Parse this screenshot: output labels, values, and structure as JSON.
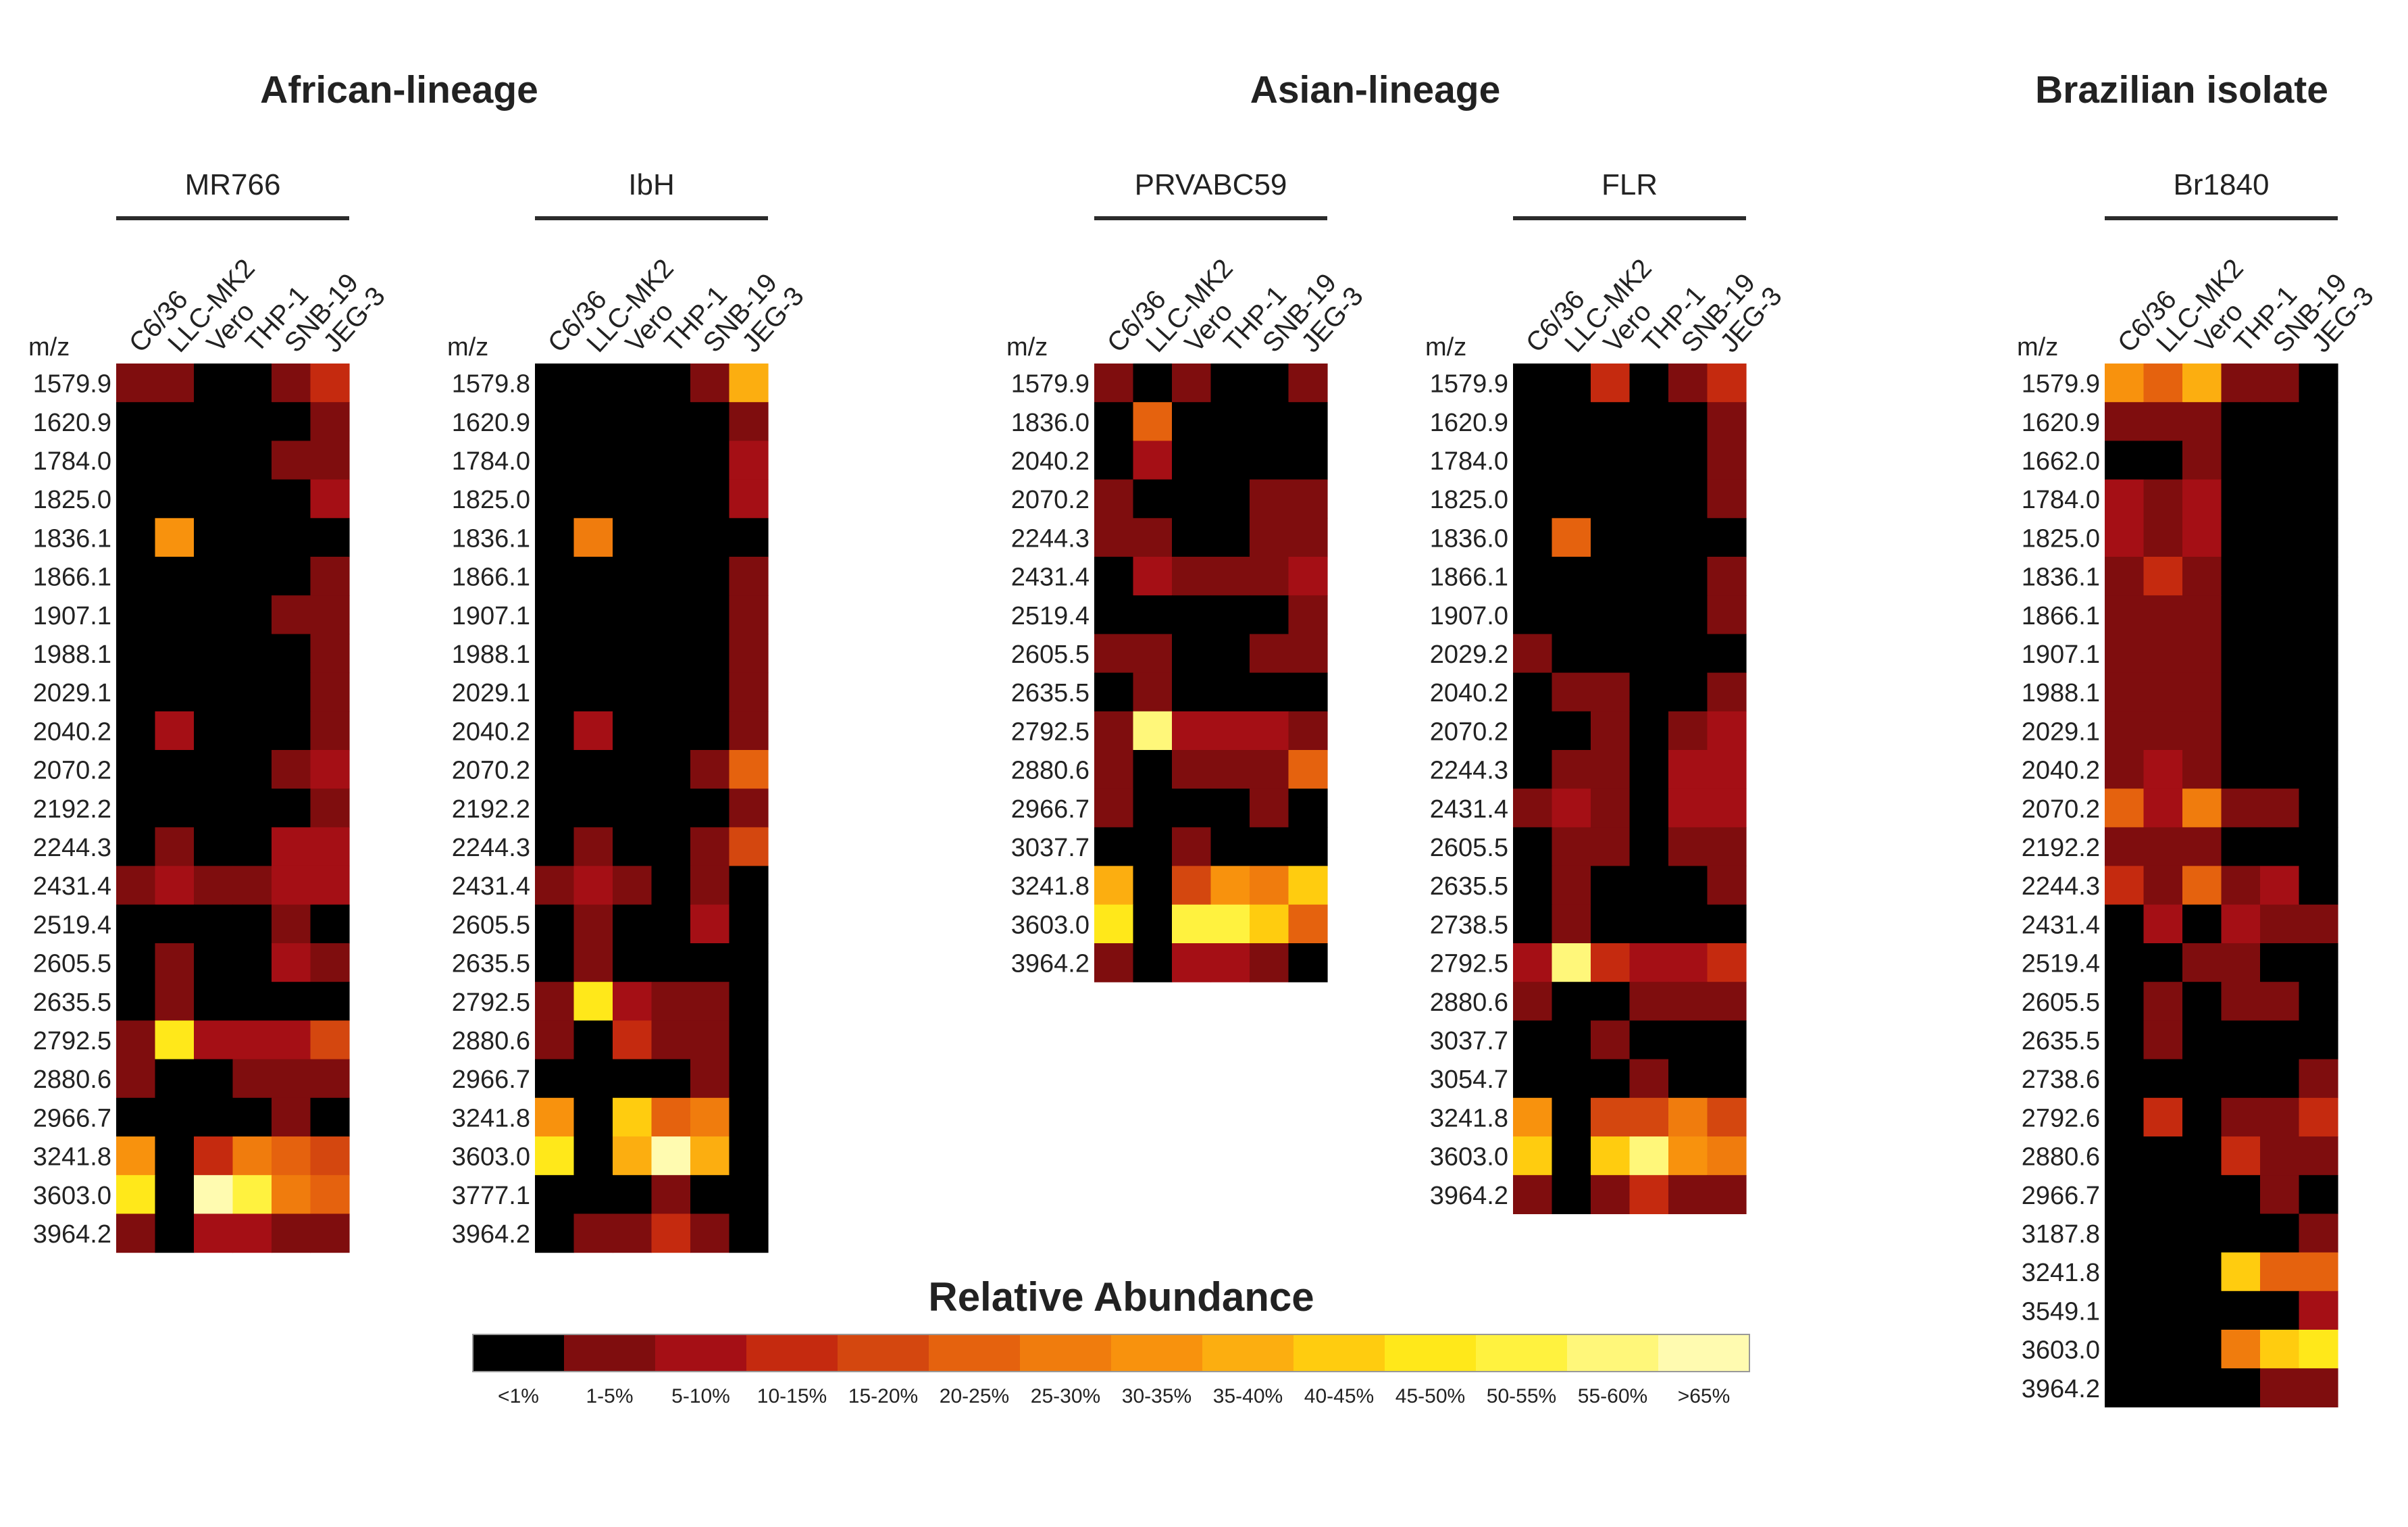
{
  "chart_data": {
    "type": "heatmap",
    "legend": {
      "title": "Relative Abundance",
      "bins": [
        {
          "label": "<1%",
          "color": "#000000"
        },
        {
          "label": "1-5%",
          "color": "#7f0d0e"
        },
        {
          "label": "5-10%",
          "color": "#a50f15"
        },
        {
          "label": "10-15%",
          "color": "#c52a0f"
        },
        {
          "label": "15-20%",
          "color": "#d4470f"
        },
        {
          "label": "20-25%",
          "color": "#e5620e"
        },
        {
          "label": "25-30%",
          "color": "#f07c0d"
        },
        {
          "label": "30-35%",
          "color": "#f8920d"
        },
        {
          "label": "35-40%",
          "color": "#fcae10"
        },
        {
          "label": "40-45%",
          "color": "#ffcc0f"
        },
        {
          "label": "45-50%",
          "color": "#ffe81a"
        },
        {
          "label": "50-55%",
          "color": "#fff23f"
        },
        {
          "label": "55-60%",
          "color": "#fff77a"
        },
        {
          "label": ">65%",
          "color": "#fffbb0"
        }
      ]
    },
    "groups": [
      {
        "title": "African-lineage",
        "panels": [
          0,
          1
        ]
      },
      {
        "title": "Asian-lineage",
        "panels": [
          2,
          3
        ]
      },
      {
        "title": "Brazilian isolate",
        "panels": [
          4
        ]
      }
    ],
    "row_header": "m/z",
    "panels": [
      {
        "virus": "MR766",
        "columns": [
          "C6/36",
          "LLC-MK2",
          "Vero",
          "THP-1",
          "SNB-19",
          "JEG-3"
        ],
        "rows": [
          "1579.9",
          "1620.9",
          "1784.0",
          "1825.0",
          "1836.1",
          "1866.1",
          "1907.1",
          "1988.1",
          "2029.1",
          "2040.2",
          "2070.2",
          "2192.2",
          "2244.3",
          "2431.4",
          "2519.4",
          "2605.5",
          "2635.5",
          "2792.5",
          "2880.6",
          "2966.7",
          "3241.8",
          "3603.0",
          "3964.2"
        ],
        "values": [
          [
            1,
            1,
            0,
            0,
            1,
            3
          ],
          [
            0,
            0,
            0,
            0,
            0,
            1
          ],
          [
            0,
            0,
            0,
            0,
            1,
            1
          ],
          [
            0,
            0,
            0,
            0,
            0,
            2
          ],
          [
            0,
            7,
            0,
            0,
            0,
            0
          ],
          [
            0,
            0,
            0,
            0,
            0,
            1
          ],
          [
            0,
            0,
            0,
            0,
            1,
            1
          ],
          [
            0,
            0,
            0,
            0,
            0,
            1
          ],
          [
            0,
            0,
            0,
            0,
            0,
            1
          ],
          [
            0,
            2,
            0,
            0,
            0,
            1
          ],
          [
            0,
            0,
            0,
            0,
            1,
            2
          ],
          [
            0,
            0,
            0,
            0,
            0,
            1
          ],
          [
            0,
            1,
            0,
            0,
            2,
            2
          ],
          [
            1,
            2,
            1,
            1,
            2,
            2
          ],
          [
            0,
            0,
            0,
            0,
            1,
            0
          ],
          [
            0,
            1,
            0,
            0,
            2,
            1
          ],
          [
            0,
            1,
            0,
            0,
            0,
            0
          ],
          [
            1,
            10,
            2,
            2,
            2,
            4
          ],
          [
            1,
            0,
            0,
            1,
            1,
            1
          ],
          [
            0,
            0,
            0,
            0,
            1,
            0
          ],
          [
            7,
            0,
            3,
            6,
            5,
            4
          ],
          [
            10,
            0,
            13,
            11,
            6,
            5
          ],
          [
            1,
            0,
            2,
            2,
            1,
            1
          ]
        ]
      },
      {
        "virus": "IbH",
        "columns": [
          "C6/36",
          "LLC-MK2",
          "Vero",
          "THP-1",
          "SNB-19",
          "JEG-3"
        ],
        "rows": [
          "1579.8",
          "1620.9",
          "1784.0",
          "1825.0",
          "1836.1",
          "1866.1",
          "1907.1",
          "1988.1",
          "2029.1",
          "2040.2",
          "2070.2",
          "2192.2",
          "2244.3",
          "2431.4",
          "2605.5",
          "2635.5",
          "2792.5",
          "2880.6",
          "2966.7",
          "3241.8",
          "3603.0",
          "3777.1",
          "3964.2"
        ],
        "values": [
          [
            0,
            0,
            0,
            0,
            1,
            8
          ],
          [
            0,
            0,
            0,
            0,
            0,
            1
          ],
          [
            0,
            0,
            0,
            0,
            0,
            2
          ],
          [
            0,
            0,
            0,
            0,
            0,
            2
          ],
          [
            0,
            6,
            0,
            0,
            0,
            0
          ],
          [
            0,
            0,
            0,
            0,
            0,
            1
          ],
          [
            0,
            0,
            0,
            0,
            0,
            1
          ],
          [
            0,
            0,
            0,
            0,
            0,
            1
          ],
          [
            0,
            0,
            0,
            0,
            0,
            1
          ],
          [
            0,
            2,
            0,
            0,
            0,
            1
          ],
          [
            0,
            0,
            0,
            0,
            1,
            5
          ],
          [
            0,
            0,
            0,
            0,
            0,
            1
          ],
          [
            0,
            1,
            0,
            0,
            1,
            4
          ],
          [
            1,
            2,
            1,
            0,
            1,
            0
          ],
          [
            0,
            1,
            0,
            0,
            2,
            0
          ],
          [
            0,
            1,
            0,
            0,
            0,
            0
          ],
          [
            1,
            10,
            2,
            1,
            1,
            0
          ],
          [
            1,
            0,
            3,
            1,
            1,
            0
          ],
          [
            0,
            0,
            0,
            0,
            1,
            0
          ],
          [
            7,
            0,
            9,
            5,
            6,
            0
          ],
          [
            10,
            0,
            8,
            13,
            8,
            0
          ],
          [
            0,
            0,
            0,
            1,
            0,
            0
          ],
          [
            0,
            1,
            1,
            3,
            1,
            0
          ]
        ]
      },
      {
        "virus": "PRVABC59",
        "columns": [
          "C6/36",
          "LLC-MK2",
          "Vero",
          "THP-1",
          "SNB-19",
          "JEG-3"
        ],
        "rows": [
          "1579.9",
          "1836.0",
          "2040.2",
          "2070.2",
          "2244.3",
          "2431.4",
          "2519.4",
          "2605.5",
          "2635.5",
          "2792.5",
          "2880.6",
          "2966.7",
          "3037.7",
          "3241.8",
          "3603.0",
          "3964.2"
        ],
        "values": [
          [
            1,
            0,
            1,
            0,
            0,
            1
          ],
          [
            0,
            5,
            0,
            0,
            0,
            0
          ],
          [
            0,
            2,
            0,
            0,
            0,
            0
          ],
          [
            1,
            0,
            0,
            0,
            1,
            1
          ],
          [
            1,
            1,
            0,
            0,
            1,
            1
          ],
          [
            0,
            2,
            1,
            1,
            1,
            2
          ],
          [
            0,
            0,
            0,
            0,
            0,
            1
          ],
          [
            1,
            1,
            0,
            0,
            1,
            1
          ],
          [
            0,
            1,
            0,
            0,
            0,
            0
          ],
          [
            1,
            12,
            2,
            2,
            2,
            1
          ],
          [
            1,
            0,
            1,
            1,
            1,
            5
          ],
          [
            1,
            0,
            0,
            0,
            1,
            0
          ],
          [
            0,
            0,
            1,
            0,
            0,
            0
          ],
          [
            8,
            0,
            4,
            7,
            6,
            9
          ],
          [
            10,
            0,
            11,
            11,
            9,
            5
          ],
          [
            1,
            0,
            2,
            2,
            1,
            0
          ]
        ]
      },
      {
        "virus": "FLR",
        "columns": [
          "C6/36",
          "LLC-MK2",
          "Vero",
          "THP-1",
          "SNB-19",
          "JEG-3"
        ],
        "rows": [
          "1579.9",
          "1620.9",
          "1784.0",
          "1825.0",
          "1836.0",
          "1866.1",
          "1907.0",
          "2029.2",
          "2040.2",
          "2070.2",
          "2244.3",
          "2431.4",
          "2605.5",
          "2635.5",
          "2738.5",
          "2792.5",
          "2880.6",
          "3037.7",
          "3054.7",
          "3241.8",
          "3603.0",
          "3964.2"
        ],
        "values": [
          [
            0,
            0,
            3,
            0,
            1,
            3
          ],
          [
            0,
            0,
            0,
            0,
            0,
            1
          ],
          [
            0,
            0,
            0,
            0,
            0,
            1
          ],
          [
            0,
            0,
            0,
            0,
            0,
            1
          ],
          [
            0,
            5,
            0,
            0,
            0,
            0
          ],
          [
            0,
            0,
            0,
            0,
            0,
            1
          ],
          [
            0,
            0,
            0,
            0,
            0,
            1
          ],
          [
            1,
            0,
            0,
            0,
            0,
            0
          ],
          [
            0,
            1,
            1,
            0,
            0,
            1
          ],
          [
            0,
            0,
            1,
            0,
            1,
            2
          ],
          [
            0,
            1,
            1,
            0,
            2,
            2
          ],
          [
            1,
            2,
            1,
            0,
            2,
            2
          ],
          [
            0,
            1,
            1,
            0,
            1,
            1
          ],
          [
            0,
            1,
            0,
            0,
            0,
            1
          ],
          [
            0,
            1,
            0,
            0,
            0,
            0
          ],
          [
            2,
            12,
            3,
            2,
            2,
            3
          ],
          [
            1,
            0,
            0,
            1,
            1,
            1
          ],
          [
            0,
            0,
            1,
            0,
            0,
            0
          ],
          [
            0,
            0,
            0,
            1,
            0,
            0
          ],
          [
            7,
            0,
            4,
            4,
            6,
            4
          ],
          [
            9,
            0,
            9,
            12,
            7,
            6
          ],
          [
            1,
            0,
            1,
            3,
            1,
            1
          ]
        ]
      },
      {
        "virus": "Br1840",
        "columns": [
          "C6/36",
          "LLC-MK2",
          "Vero",
          "THP-1",
          "SNB-19",
          "JEG-3"
        ],
        "rows": [
          "1579.9",
          "1620.9",
          "1662.0",
          "1784.0",
          "1825.0",
          "1836.1",
          "1866.1",
          "1907.1",
          "1988.1",
          "2029.1",
          "2040.2",
          "2070.2",
          "2192.2",
          "2244.3",
          "2431.4",
          "2519.4",
          "2605.5",
          "2635.5",
          "2738.6",
          "2792.6",
          "2880.6",
          "2966.7",
          "3187.8",
          "3241.8",
          "3549.1",
          "3603.0",
          "3964.2"
        ],
        "values": [
          [
            7,
            5,
            8,
            1,
            1,
            0
          ],
          [
            1,
            1,
            1,
            0,
            0,
            0
          ],
          [
            0,
            0,
            1,
            0,
            0,
            0
          ],
          [
            2,
            1,
            2,
            0,
            0,
            0
          ],
          [
            2,
            1,
            2,
            0,
            0,
            0
          ],
          [
            1,
            3,
            1,
            0,
            0,
            0
          ],
          [
            1,
            1,
            1,
            0,
            0,
            0
          ],
          [
            1,
            1,
            1,
            0,
            0,
            0
          ],
          [
            1,
            1,
            1,
            0,
            0,
            0
          ],
          [
            1,
            1,
            1,
            0,
            0,
            0
          ],
          [
            1,
            2,
            1,
            0,
            0,
            0
          ],
          [
            5,
            2,
            6,
            1,
            1,
            0
          ],
          [
            1,
            1,
            1,
            0,
            0,
            0
          ],
          [
            3,
            1,
            5,
            1,
            2,
            0
          ],
          [
            0,
            2,
            0,
            2,
            1,
            1
          ],
          [
            0,
            0,
            1,
            1,
            0,
            0
          ],
          [
            0,
            1,
            0,
            1,
            1,
            0
          ],
          [
            0,
            1,
            0,
            0,
            0,
            0
          ],
          [
            0,
            0,
            0,
            0,
            0,
            1
          ],
          [
            0,
            3,
            0,
            1,
            1,
            3
          ],
          [
            0,
            0,
            0,
            3,
            1,
            1
          ],
          [
            0,
            0,
            0,
            0,
            1,
            0
          ],
          [
            0,
            0,
            0,
            0,
            0,
            1
          ],
          [
            0,
            0,
            0,
            9,
            5,
            5
          ],
          [
            0,
            0,
            0,
            0,
            0,
            2
          ],
          [
            0,
            0,
            0,
            6,
            9,
            10
          ],
          [
            0,
            0,
            0,
            0,
            1,
            1
          ]
        ]
      }
    ]
  }
}
